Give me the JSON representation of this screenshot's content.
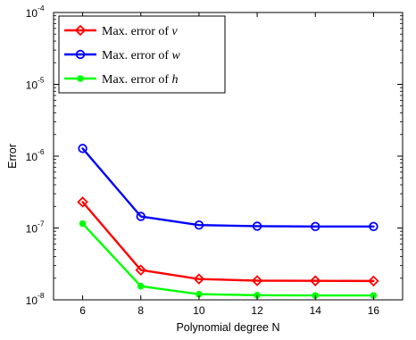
{
  "chart_data": {
    "type": "line",
    "title": "",
    "xlabel": "Polynomial degree N",
    "ylabel": "Error",
    "xlim": [
      5,
      17
    ],
    "ylim": [
      1e-08,
      0.0001
    ],
    "yscale": "log",
    "x": [
      6,
      8,
      10,
      12,
      14,
      16
    ],
    "x_tick_labels": [
      "6",
      "8",
      "10",
      "12",
      "14",
      "16"
    ],
    "y_ticks": [
      {
        "value": 1e-08,
        "base": "10",
        "exp": "-8"
      },
      {
        "value": 1e-07,
        "base": "10",
        "exp": "-7"
      },
      {
        "value": 1e-06,
        "base": "10",
        "exp": "-6"
      },
      {
        "value": 1e-05,
        "base": "10",
        "exp": "-5"
      },
      {
        "value": 0.0001,
        "base": "10",
        "exp": "-4"
      }
    ],
    "grid": false,
    "legend_position": "top-left",
    "series": [
      {
        "name": "Max. error of v",
        "label_prefix": "Max. error of ",
        "label_var": "v",
        "color": "#ff0000",
        "marker": "diamond",
        "values": [
          2.3e-07,
          2.6e-08,
          1.95e-08,
          1.85e-08,
          1.84e-08,
          1.83e-08
        ]
      },
      {
        "name": "Max. error of w",
        "label_prefix": "Max. error of ",
        "label_var": "w",
        "color": "#0000ff",
        "marker": "circle",
        "values": [
          1.28e-06,
          1.45e-07,
          1.1e-07,
          1.06e-07,
          1.05e-07,
          1.05e-07
        ]
      },
      {
        "name": "Max. error of h",
        "label_prefix": "Max. error of ",
        "label_var": "h",
        "color": "#00ff00",
        "marker": "filled-circle",
        "values": [
          1.15e-07,
          1.55e-08,
          1.2e-08,
          1.16e-08,
          1.15e-08,
          1.15e-08
        ]
      }
    ]
  }
}
